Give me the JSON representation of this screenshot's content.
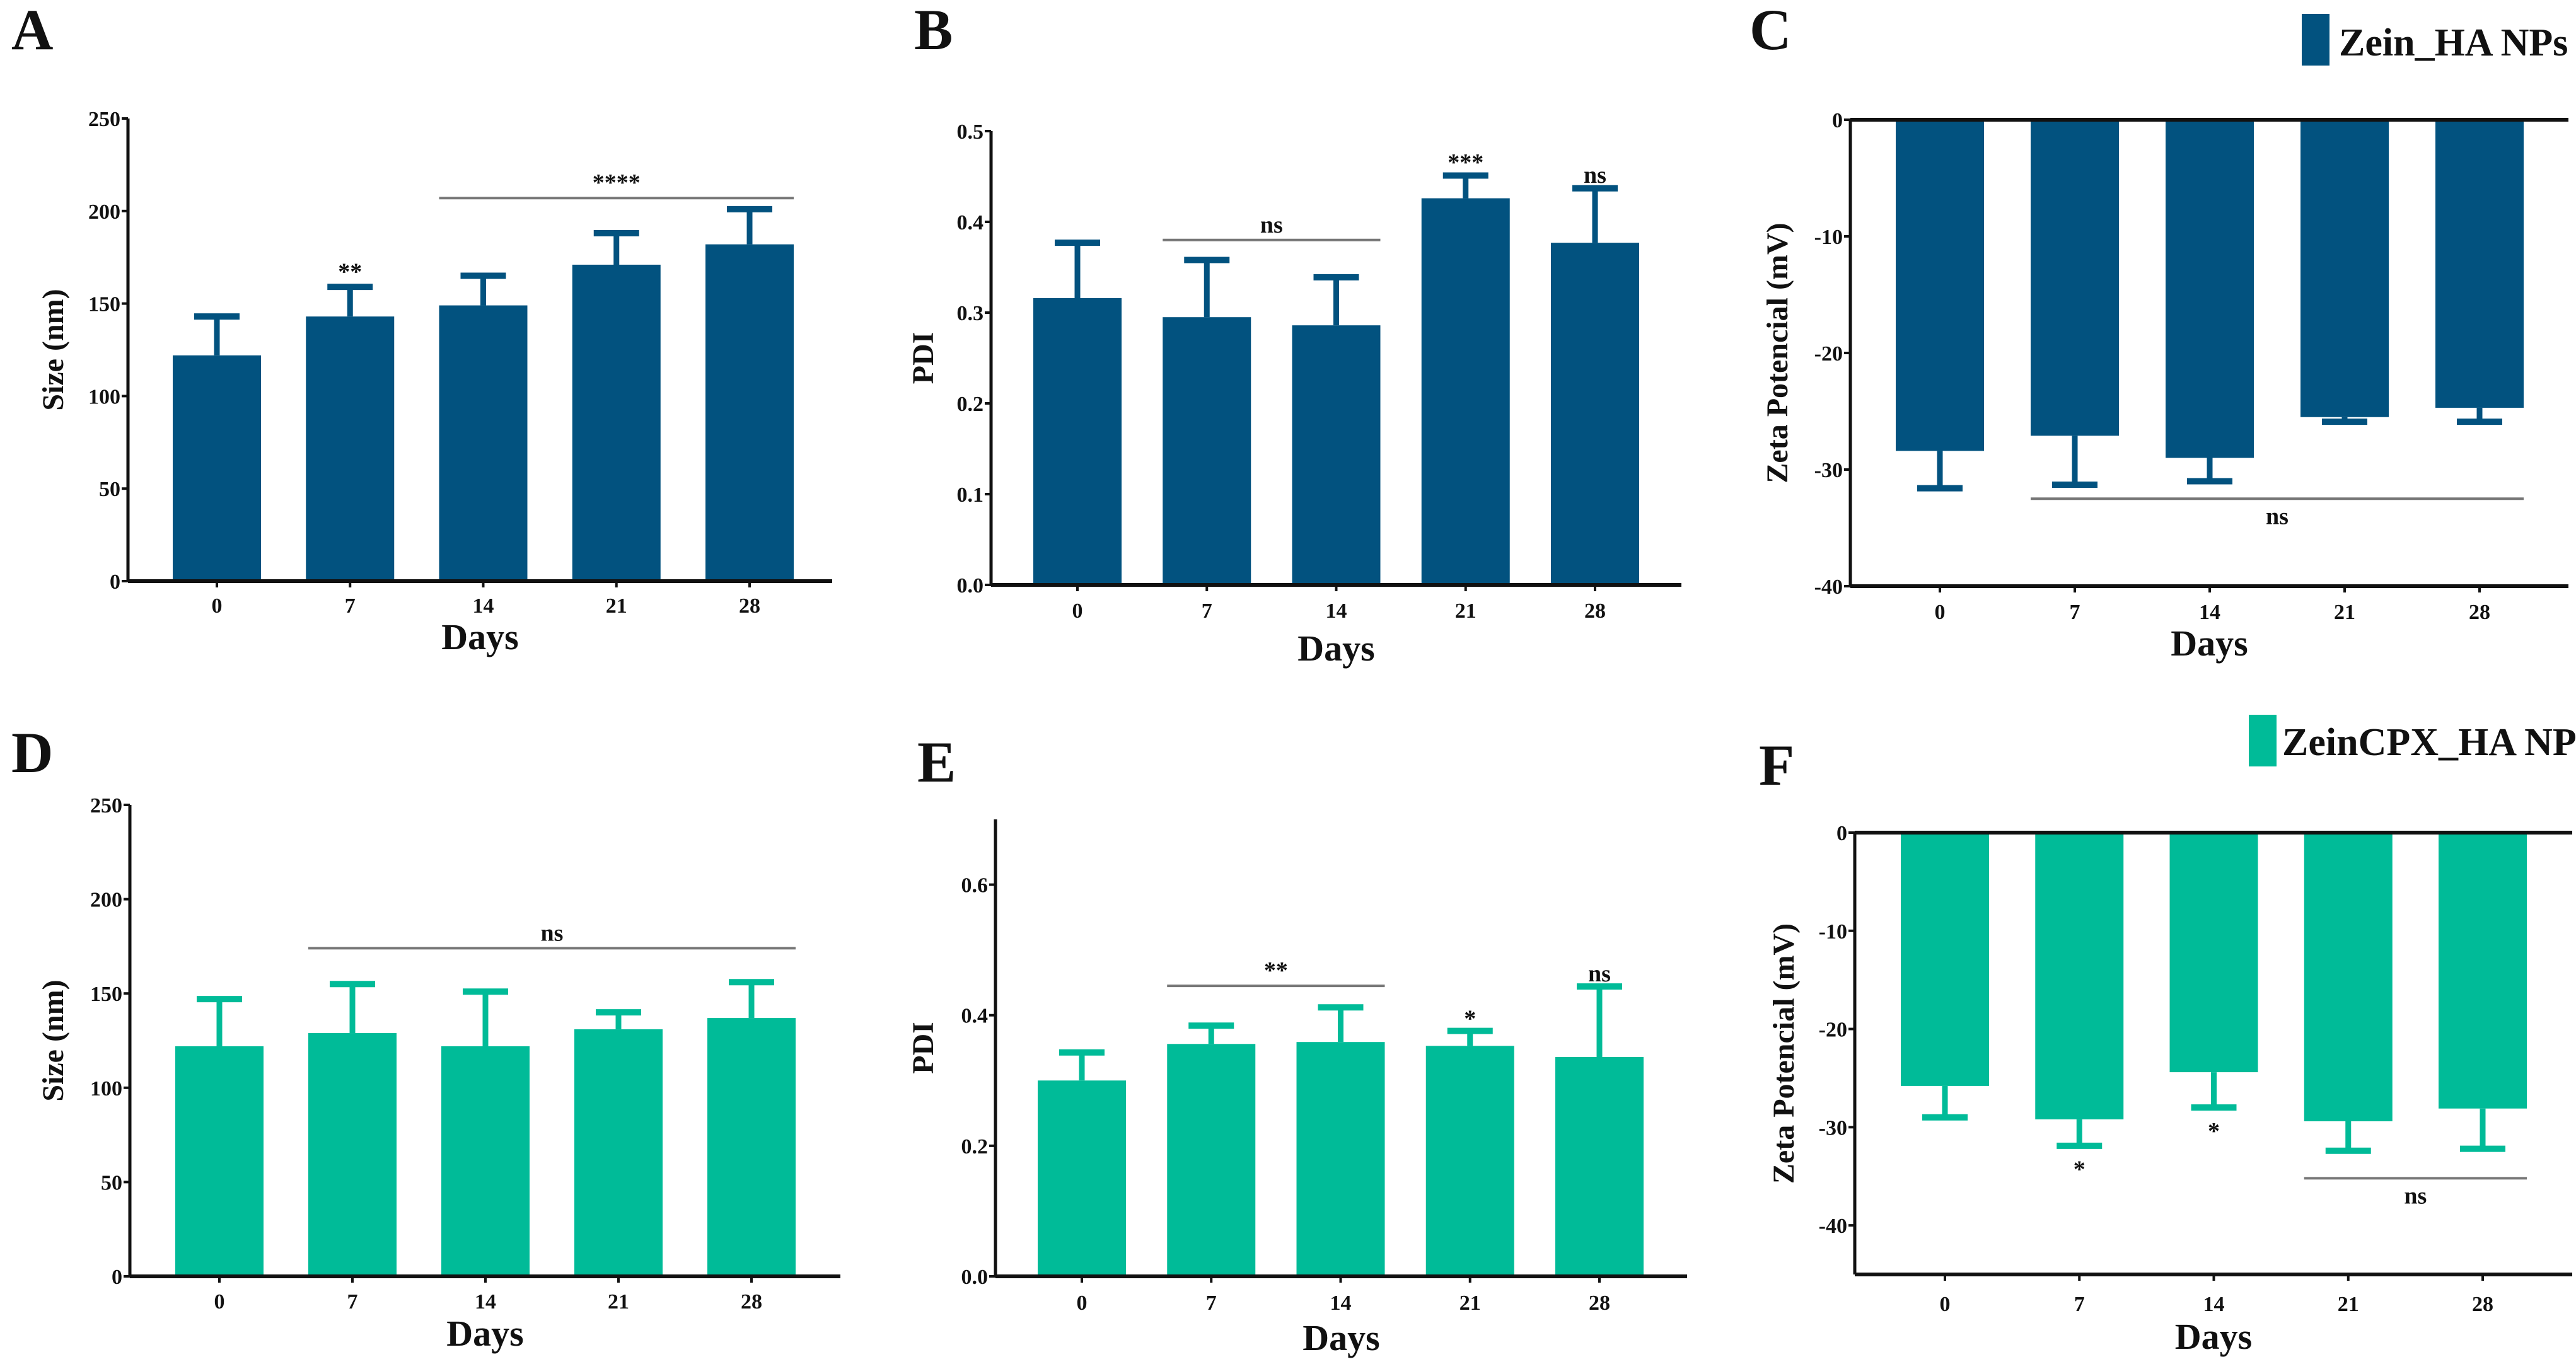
{
  "colors": {
    "zein_ha": "#02527f",
    "zeincpx_ha": "#00bb98",
    "axis": "#111111",
    "sig_line": "#777777"
  },
  "chart_data": [
    {
      "panel": "A",
      "type": "bar",
      "series_name": "Zein_HA NPs",
      "xlabel": "Days",
      "ylabel": "Size (nm)",
      "categories": [
        "0",
        "7",
        "14",
        "21",
        "28"
      ],
      "values": [
        122,
        143,
        149,
        171,
        182
      ],
      "error_upper": [
        143,
        159,
        165,
        188,
        201
      ],
      "ylim": [
        0,
        250
      ],
      "yticks": [
        "0",
        "50",
        "100",
        "150",
        "200",
        "250"
      ],
      "ytick_values": [
        0,
        50,
        100,
        150,
        200,
        250
      ],
      "annotations": [
        {
          "text": "**",
          "type": "label",
          "x_from": 1,
          "x_to": 1,
          "level": 163
        },
        {
          "text": "****",
          "type": "line-above",
          "x_from": 2,
          "x_to": 4,
          "level": 207
        }
      ]
    },
    {
      "panel": "B",
      "type": "bar",
      "series_name": "Zein_HA NPs",
      "xlabel": "Days",
      "ylabel": "PDI",
      "categories": [
        "0",
        "7",
        "14",
        "21",
        "28"
      ],
      "values": [
        0.316,
        0.295,
        0.286,
        0.426,
        0.377
      ],
      "error_upper": [
        0.377,
        0.358,
        0.339,
        0.451,
        0.437
      ],
      "ylim": [
        0,
        0.5
      ],
      "yticks": [
        "0.0",
        "0.1",
        "0.2",
        "0.3",
        "0.4",
        "0.5"
      ],
      "ytick_values": [
        0,
        0.1,
        0.2,
        0.3,
        0.4,
        0.5
      ],
      "annotations": [
        {
          "text": "ns",
          "type": "line-above",
          "x_from": 1,
          "x_to": 2,
          "level": 0.38
        },
        {
          "text": "***",
          "type": "label",
          "x_from": 3,
          "x_to": 3,
          "level": 0.457
        },
        {
          "text": "ns",
          "type": "label",
          "x_from": 4,
          "x_to": 4,
          "level": 0.443
        }
      ]
    },
    {
      "panel": "C",
      "type": "bar",
      "series_name": "Zein_HA NPs",
      "legend": "Zein_HA NPs",
      "xlabel": "Days",
      "ylabel": "Zeta Potencial (mV)",
      "categories": [
        "0",
        "7",
        "14",
        "21",
        "28"
      ],
      "values": [
        -28.4,
        -27.1,
        -29.0,
        -25.5,
        -24.7
      ],
      "error_lower": [
        -31.6,
        -31.3,
        -31.0,
        -25.9,
        -25.9
      ],
      "ylim": [
        -40,
        0
      ],
      "yticks": [
        "0",
        "-10",
        "-20",
        "-30",
        "-40"
      ],
      "ytick_values": [
        0,
        -10,
        -20,
        -30,
        -40
      ],
      "annotations": [
        {
          "text": "ns",
          "type": "line-below",
          "x_from": 1,
          "x_to": 4,
          "level": -32.5
        }
      ]
    },
    {
      "panel": "D",
      "type": "bar",
      "series_name": "ZeinCPX_HA NPs",
      "xlabel": "Days",
      "ylabel": "Size (nm)",
      "categories": [
        "0",
        "7",
        "14",
        "21",
        "28"
      ],
      "values": [
        122,
        129,
        122,
        131,
        137
      ],
      "error_upper": [
        147,
        155,
        151,
        140,
        156
      ],
      "ylim": [
        0,
        250
      ],
      "yticks": [
        "0",
        "50",
        "100",
        "150",
        "200",
        "250"
      ],
      "ytick_values": [
        0,
        50,
        100,
        150,
        200,
        250
      ],
      "annotations": [
        {
          "text": "ns",
          "type": "line-above",
          "x_from": 1,
          "x_to": 4,
          "level": 174
        }
      ]
    },
    {
      "panel": "E",
      "type": "bar",
      "series_name": "ZeinCPX_HA NPs",
      "xlabel": "Days",
      "ylabel": "PDI",
      "categories": [
        "0",
        "7",
        "14",
        "21",
        "28"
      ],
      "values": [
        0.3,
        0.356,
        0.359,
        0.353,
        0.336
      ],
      "error_upper": [
        0.343,
        0.384,
        0.412,
        0.376,
        0.444
      ],
      "ylim": [
        0,
        0.7
      ],
      "yticks": [
        "0.0",
        "0.2",
        "0.4",
        "0.6"
      ],
      "ytick_values": [
        0,
        0.2,
        0.4,
        0.6
      ],
      "annotations": [
        {
          "text": "**",
          "type": "line-above",
          "x_from": 1,
          "x_to": 2,
          "level": 0.445
        },
        {
          "text": "*",
          "type": "label",
          "x_from": 3,
          "x_to": 3,
          "level": 0.383
        },
        {
          "text": "ns",
          "type": "label",
          "x_from": 4,
          "x_to": 4,
          "level": 0.452
        }
      ]
    },
    {
      "panel": "F",
      "type": "bar",
      "series_name": "ZeinCPX_HA NPs",
      "legend": "ZeinCPX_HA NPs",
      "xlabel": "Days",
      "ylabel": "Zeta Potencial (mV)",
      "categories": [
        "0",
        "7",
        "14",
        "21",
        "28"
      ],
      "values": [
        -25.8,
        -29.2,
        -24.4,
        -29.4,
        -28.1
      ],
      "error_lower": [
        -29.0,
        -31.9,
        -28.0,
        -32.4,
        -32.2
      ],
      "ylim": [
        -45,
        0
      ],
      "yticks": [
        "0",
        "-10",
        "-20",
        "-30",
        "-40"
      ],
      "ytick_values": [
        0,
        -10,
        -20,
        -30,
        -40
      ],
      "annotations": [
        {
          "text": "*",
          "type": "label-below",
          "x_from": 1,
          "x_to": 1,
          "level": -32.4
        },
        {
          "text": "*",
          "type": "label-below",
          "x_from": 2,
          "x_to": 2,
          "level": -28.5
        },
        {
          "text": "ns",
          "type": "line-below",
          "x_from": 3,
          "x_to": 4,
          "level": -35.2
        }
      ]
    }
  ]
}
